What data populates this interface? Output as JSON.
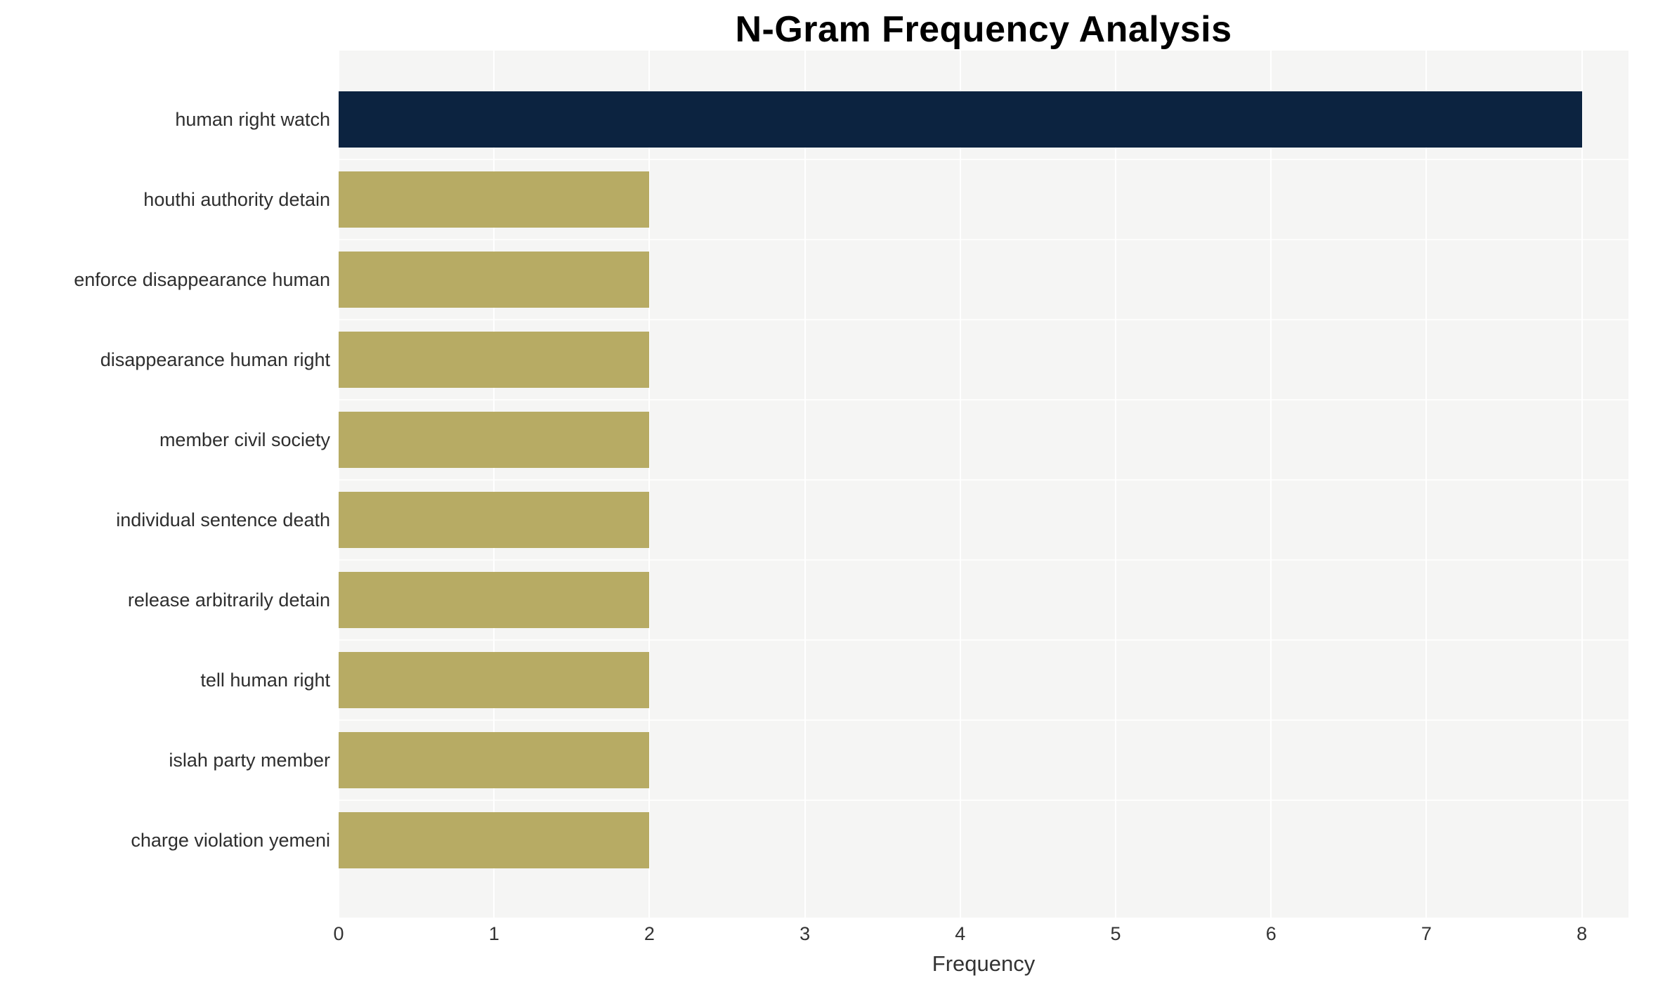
{
  "chart_data": {
    "type": "bar",
    "orientation": "horizontal",
    "title": "N-Gram Frequency Analysis",
    "xlabel": "Frequency",
    "ylabel": "",
    "categories": [
      "human right watch",
      "houthi authority detain",
      "enforce disappearance human",
      "disappearance human right",
      "member civil society",
      "individual sentence death",
      "release arbitrarily detain",
      "tell human right",
      "islah party member",
      "charge violation yemeni"
    ],
    "values": [
      8,
      2,
      2,
      2,
      2,
      2,
      2,
      2,
      2,
      2
    ],
    "bar_colors": [
      "#0c2340",
      "#b7ab64",
      "#b7ab64",
      "#b7ab64",
      "#b7ab64",
      "#b7ab64",
      "#b7ab64",
      "#b7ab64",
      "#b7ab64",
      "#b7ab64"
    ],
    "xlim": [
      0,
      8.3
    ],
    "xticks": [
      "0",
      "1",
      "2",
      "3",
      "4",
      "5",
      "6",
      "7",
      "8"
    ],
    "legend": "none",
    "grid": "vertical",
    "colors": {
      "plot_background": "#f5f5f4",
      "gridline": "#ffffff",
      "highlight_bar": "#0c2340",
      "default_bar": "#b7ab64",
      "title_text": "#000000",
      "axis_text": "#333333"
    }
  }
}
